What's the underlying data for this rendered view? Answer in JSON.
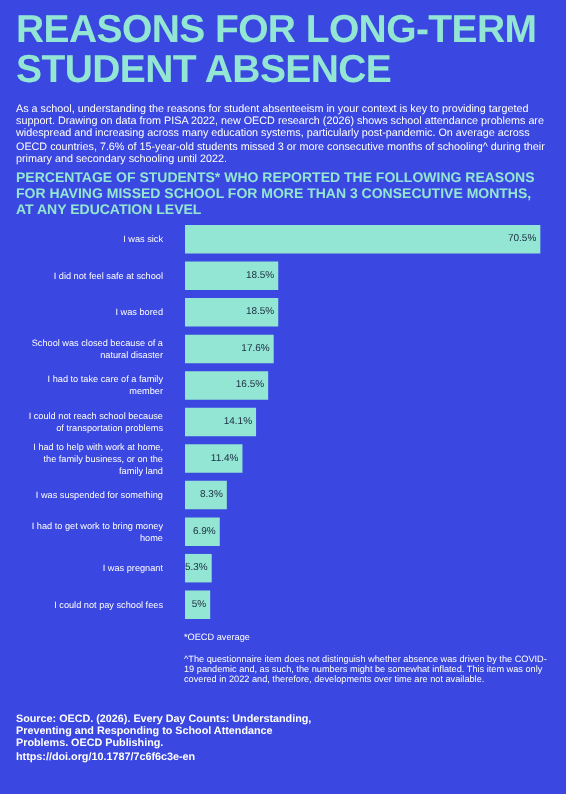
{
  "chart_data": {
    "type": "bar",
    "orientation": "horizontal",
    "title": "REASONS FOR LONG-TERM STUDENT ABSENCE",
    "subtitle": "PERCENTAGE OF STUDENTS* WHO REPORTED THE FOLLOWING REASONS FOR HAVING MISSED SCHOOL FOR MORE THAN 3 CONSECUTIVE MONTHS, AT ANY EDUCATION LEVEL",
    "annotations": [
      "As a school, understanding the reasons for student absenteeism in your context is key to providing targeted support. Drawing on data from PISA 2022, new OECD research (2026) shows school attendance problems are widespread and increasing across many education systems, particularly post-pandemic. On average across OECD countries, 7.6% of 15-year-old students missed 3 or more consecutive months of schooling^ during their primary and secondary schooling until 2022.",
      "*OECD average",
      "^The questionnaire item does not distinguish whether absence was driven by the COVID-19 pandemic and, as such, the numbers might be somewhat inflated. This item was only covered in 2022 and, therefore, developments over time are not available.",
      "Source: OECD. (2026). Every Day Counts: Understanding, Preventing and Responding to School Attendance Problems. OECD Publishing. https://doi.org/10.1787/7c6f6c3e-en"
    ],
    "categories": [
      "I was sick",
      "I did not feel safe at school",
      "I was bored",
      "School was closed because of a natural disaster",
      "I had to take care of a family member",
      "I could not reach school because of transportation problems",
      "I had to help with work at home, the family business, or on the family land",
      "I was suspended for something",
      "I had to get work to bring money home",
      "I was pregnant",
      "I could not pay school fees"
    ],
    "values": [
      70.5,
      18.5,
      18.5,
      17.6,
      16.5,
      14.1,
      11.4,
      8.3,
      6.9,
      5.3,
      5
    ],
    "value_labels": [
      "70.5%",
      "18.5%",
      "18.5%",
      "17.6%",
      "16.5%",
      "14.1%",
      "11.4%",
      "8.3%",
      "6.9%",
      "5.3%",
      "5%"
    ],
    "color": "#93e6d3"
  }
}
